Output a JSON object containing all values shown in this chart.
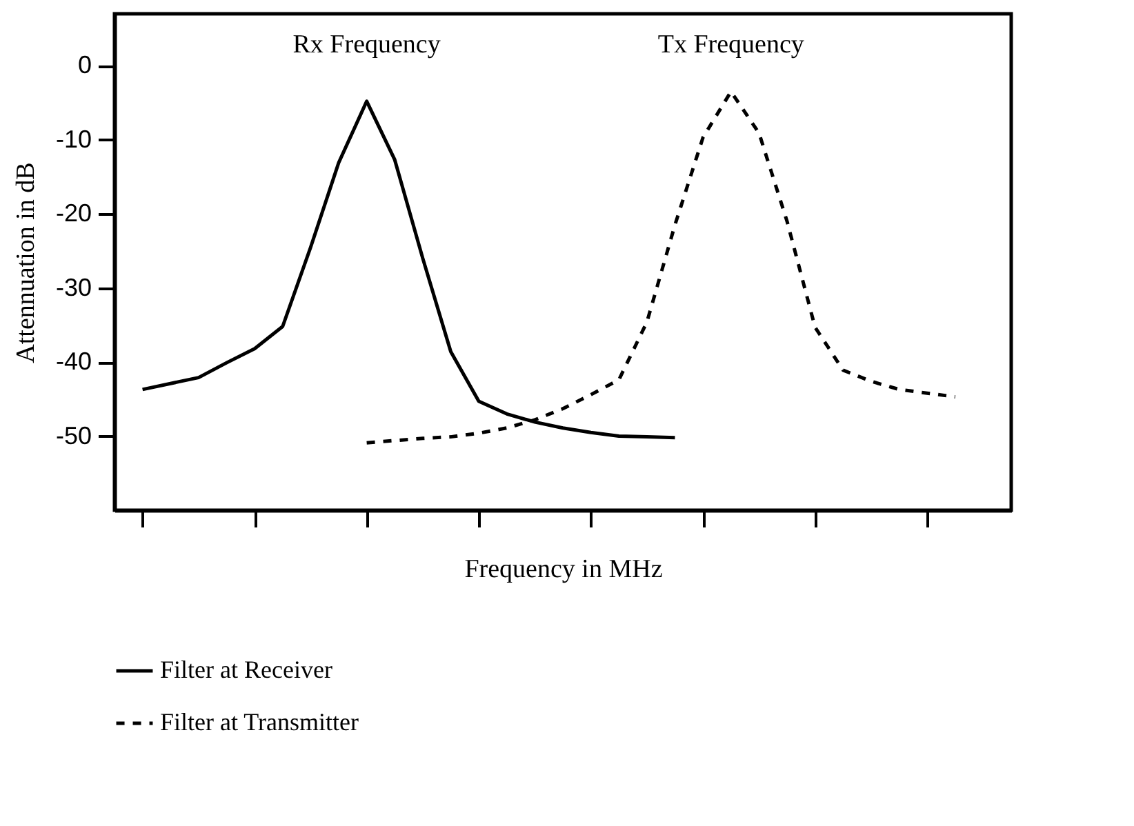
{
  "chart_data": {
    "type": "line",
    "xlabel": "Frequency  in  MHz",
    "ylabel": "Attennuation  in  dB",
    "categories": [
      null,
      null,
      null,
      null,
      null,
      null,
      null,
      null,
      null,
      null,
      null,
      null,
      null,
      null,
      null,
      null,
      null,
      null,
      null,
      null,
      null,
      null,
      null,
      null,
      null,
      null,
      null,
      null,
      null,
      null,
      null
    ],
    "ylim": [
      -60,
      7
    ],
    "yticks": [
      0,
      -10,
      -20,
      -30,
      -40,
      -50
    ],
    "tick_labels": "y",
    "grid": false,
    "legend": "bottom",
    "marker": "none",
    "series": [
      {
        "name": "Filter at Receiver",
        "color": "#000000",
        "line_style": "solid",
        "values": [
          -43.7,
          -42.9,
          -42.1,
          -40.1,
          -38.2,
          -35.2,
          -24.5,
          -13.1,
          -4.8,
          -12.7,
          -26.0,
          -38.6,
          -45.3,
          -47.0,
          -48.1,
          -48.9,
          -49.5,
          -50.0,
          -50.1,
          -50.2,
          null,
          null,
          null,
          null,
          null,
          null,
          null,
          null,
          null,
          null,
          null
        ]
      },
      {
        "name": "Filter at Transmitter",
        "color": "#000000",
        "line_style": "dashed",
        "values": [
          null,
          null,
          null,
          null,
          null,
          null,
          null,
          null,
          -50.9,
          -50.6,
          -50.3,
          -50.1,
          -49.6,
          -48.9,
          -47.8,
          -46.3,
          -44.4,
          -42.4,
          -34.6,
          -21.5,
          -9.7,
          -3.5,
          -9.1,
          -21.0,
          -35.3,
          -41.1,
          -42.6,
          -43.7,
          -44.2,
          -44.7,
          null
        ]
      }
    ],
    "annotations": [
      "Rx Frequency",
      "Tx Frequency"
    ]
  }
}
